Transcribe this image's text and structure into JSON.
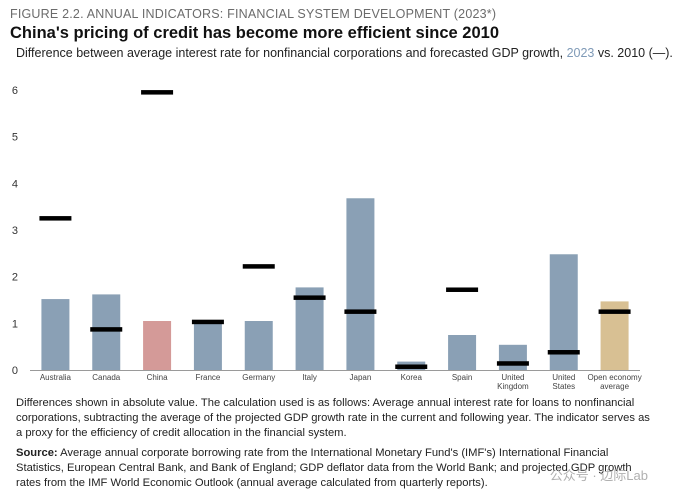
{
  "figure_label": "FIGURE 2.2. ANNUAL INDICATORS: FINANCIAL SYSTEM DEVELOPMENT (2023*)",
  "title": "China's pricing of credit has become more efficient since 2010",
  "subtitle": {
    "prefix": "Difference between average interest rate for nonfinancial corporations and forecasted GDP growth, ",
    "year_highlight": "2023",
    "suffix": " vs. 2010 (—)."
  },
  "notes": "Differences shown in absolute value. The calculation used is as follows: Average annual interest rate for loans to nonfinancial corporations, subtracting the average of the projected GDP growth rate in the current and following year. The indicator serves as a proxy for the efficiency of credit allocation in the financial system.",
  "source": {
    "label": "Source:",
    "text": " Average annual corporate borrowing rate from the International Monetary Fund's (IMF's) International Financial Statistics, European Central Bank, and Bank of England; GDP deflator data from the World Bank; and projected GDP growth rates from the IMF World Economic Outlook (annual average calculated from quarterly reports)."
  },
  "watermark": "公众号 · 边际Lab",
  "colors": {
    "bar_default": "#8aa0b5",
    "bar_china": "#d49a98",
    "bar_average": "#d8c093",
    "marker": "#000000"
  },
  "chart_data": {
    "type": "bar",
    "title": "China's pricing of credit has become more efficient since 2010",
    "xlabel": "",
    "ylabel": "",
    "ylim": [
      0,
      6
    ],
    "yticks": [
      0,
      1,
      2,
      3,
      4,
      5,
      6
    ],
    "grid": false,
    "categories": [
      "Australia",
      "Canada",
      "China",
      "France",
      "Germany",
      "Italy",
      "Japan",
      "Korea",
      "Spain",
      "United Kingdom",
      "United States",
      "Open economy average"
    ],
    "category_labels": [
      [
        "Australia"
      ],
      [
        "Canada"
      ],
      [
        "China"
      ],
      [
        "France"
      ],
      [
        "Germany"
      ],
      [
        "Italy"
      ],
      [
        "Japan"
      ],
      [
        "Korea"
      ],
      [
        "Spain"
      ],
      [
        "United",
        "Kingdom"
      ],
      [
        "United",
        "States"
      ],
      [
        "Open economy",
        "average"
      ]
    ],
    "series": [
      {
        "name": "2023",
        "style": "bar",
        "values": [
          1.52,
          1.62,
          1.05,
          1.02,
          1.05,
          1.77,
          3.68,
          0.18,
          0.75,
          0.54,
          2.48,
          1.47
        ]
      },
      {
        "name": "2010",
        "style": "marker",
        "values": [
          3.25,
          0.87,
          5.95,
          1.03,
          2.22,
          1.55,
          1.25,
          0.07,
          1.72,
          0.14,
          0.38,
          1.25
        ]
      }
    ]
  }
}
